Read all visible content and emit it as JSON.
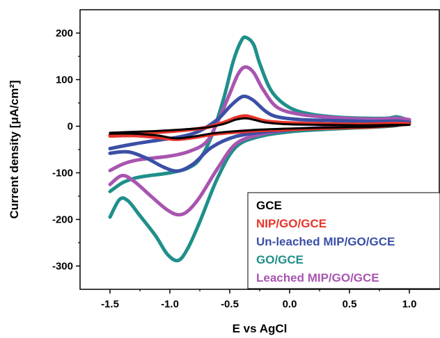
{
  "chart_data": {
    "type": "line",
    "title": "",
    "xlabel": "E vs AgCl",
    "ylabel": "Current density [μA/cm²]",
    "xlim": [
      -1.75,
      1.25
    ],
    "ylim": [
      -350,
      250
    ],
    "xticks": [
      -1.5,
      -1.0,
      -0.5,
      0.0,
      0.5,
      1.0
    ],
    "xtick_labels": [
      "-1.5",
      "-1.0",
      "-0.5",
      "0.0",
      "0.5",
      "1.0"
    ],
    "yticks": [
      -300,
      -200,
      -100,
      0,
      100,
      200
    ],
    "ytick_labels": [
      "-300",
      "-200",
      "-100",
      "0",
      "100",
      "200"
    ],
    "grid": false,
    "legend_position": "bottom-right",
    "series": [
      {
        "name": "GCE",
        "color": "#000000",
        "forward": [
          [
            -1.5,
            -14
          ],
          [
            -1.3,
            -12
          ],
          [
            -1.1,
            -10
          ],
          [
            -0.9,
            -7
          ],
          [
            -0.7,
            -3
          ],
          [
            -0.55,
            5
          ],
          [
            -0.45,
            14
          ],
          [
            -0.37,
            17
          ],
          [
            -0.3,
            14
          ],
          [
            -0.2,
            8
          ],
          [
            0.0,
            4
          ],
          [
            0.3,
            3
          ],
          [
            0.6,
            2
          ],
          [
            0.9,
            3
          ],
          [
            1.0,
            3
          ]
        ],
        "reverse": [
          [
            1.0,
            3
          ],
          [
            0.7,
            -1
          ],
          [
            0.3,
            -3
          ],
          [
            0.0,
            -5
          ],
          [
            -0.3,
            -8
          ],
          [
            -0.6,
            -14
          ],
          [
            -0.8,
            -22
          ],
          [
            -0.95,
            -26
          ],
          [
            -1.1,
            -20
          ],
          [
            -1.3,
            -16
          ],
          [
            -1.5,
            -16
          ]
        ]
      },
      {
        "name": "NIP/GO/GCE",
        "color": "#e8342a",
        "forward": [
          [
            -1.5,
            -19
          ],
          [
            -1.3,
            -16
          ],
          [
            -1.1,
            -13
          ],
          [
            -0.9,
            -9
          ],
          [
            -0.7,
            -3
          ],
          [
            -0.55,
            8
          ],
          [
            -0.45,
            18
          ],
          [
            -0.37,
            22
          ],
          [
            -0.3,
            18
          ],
          [
            -0.2,
            11
          ],
          [
            0.0,
            7
          ],
          [
            0.3,
            5
          ],
          [
            0.6,
            4
          ],
          [
            0.9,
            6
          ],
          [
            1.0,
            5
          ]
        ],
        "reverse": [
          [
            1.0,
            5
          ],
          [
            0.7,
            -1
          ],
          [
            0.3,
            -4
          ],
          [
            0.0,
            -7
          ],
          [
            -0.3,
            -10
          ],
          [
            -0.6,
            -16
          ],
          [
            -0.8,
            -24
          ],
          [
            -0.95,
            -28
          ],
          [
            -1.1,
            -24
          ],
          [
            -1.3,
            -20
          ],
          [
            -1.5,
            -21
          ]
        ]
      },
      {
        "name": "Un-leached MIP/GO/GCE",
        "color": "#3a4fa6",
        "forward": [
          [
            -1.5,
            -48
          ],
          [
            -1.3,
            -38
          ],
          [
            -1.1,
            -30
          ],
          [
            -0.9,
            -22
          ],
          [
            -0.75,
            -10
          ],
          [
            -0.6,
            15
          ],
          [
            -0.5,
            42
          ],
          [
            -0.42,
            60
          ],
          [
            -0.37,
            64
          ],
          [
            -0.3,
            55
          ],
          [
            -0.2,
            32
          ],
          [
            -0.1,
            20
          ],
          [
            0.1,
            14
          ],
          [
            0.4,
            12
          ],
          [
            0.7,
            10
          ],
          [
            0.9,
            11
          ],
          [
            1.0,
            8
          ]
        ],
        "reverse": [
          [
            1.0,
            8
          ],
          [
            0.7,
            3
          ],
          [
            0.4,
            -2
          ],
          [
            0.1,
            -6
          ],
          [
            -0.2,
            -12
          ],
          [
            -0.45,
            -22
          ],
          [
            -0.65,
            -45
          ],
          [
            -0.8,
            -80
          ],
          [
            -0.93,
            -96
          ],
          [
            -1.05,
            -88
          ],
          [
            -1.2,
            -68
          ],
          [
            -1.35,
            -55
          ],
          [
            -1.5,
            -58
          ]
        ]
      },
      {
        "name": "GO/GCE",
        "color": "#1f8f8a",
        "forward": [
          [
            -1.5,
            -140
          ],
          [
            -1.4,
            -122
          ],
          [
            -1.3,
            -112
          ],
          [
            -1.2,
            -107
          ],
          [
            -1.0,
            -100
          ],
          [
            -0.85,
            -90
          ],
          [
            -0.75,
            -70
          ],
          [
            -0.65,
            -20
          ],
          [
            -0.55,
            60
          ],
          [
            -0.47,
            140
          ],
          [
            -0.4,
            185
          ],
          [
            -0.36,
            190
          ],
          [
            -0.3,
            175
          ],
          [
            -0.25,
            135
          ],
          [
            -0.15,
            75
          ],
          [
            0.0,
            40
          ],
          [
            0.2,
            25
          ],
          [
            0.5,
            18
          ],
          [
            0.8,
            17
          ],
          [
            0.9,
            20
          ],
          [
            1.0,
            12
          ]
        ],
        "reverse": [
          [
            1.0,
            12
          ],
          [
            0.9,
            2
          ],
          [
            0.7,
            -2
          ],
          [
            0.5,
            -4
          ],
          [
            0.2,
            -8
          ],
          [
            0.0,
            -12
          ],
          [
            -0.25,
            -22
          ],
          [
            -0.45,
            -45
          ],
          [
            -0.6,
            -110
          ],
          [
            -0.75,
            -205
          ],
          [
            -0.85,
            -262
          ],
          [
            -0.93,
            -288
          ],
          [
            -1.02,
            -275
          ],
          [
            -1.12,
            -235
          ],
          [
            -1.25,
            -192
          ],
          [
            -1.35,
            -160
          ],
          [
            -1.42,
            -157
          ],
          [
            -1.5,
            -195
          ]
        ]
      },
      {
        "name": "Leached MIP/GO/GCE",
        "color": "#a855b0",
        "forward": [
          [
            -1.5,
            -95
          ],
          [
            -1.4,
            -82
          ],
          [
            -1.3,
            -74
          ],
          [
            -1.2,
            -70
          ],
          [
            -1.0,
            -64
          ],
          [
            -0.85,
            -55
          ],
          [
            -0.7,
            -35
          ],
          [
            -0.6,
            10
          ],
          [
            -0.5,
            70
          ],
          [
            -0.43,
            112
          ],
          [
            -0.37,
            127
          ],
          [
            -0.3,
            115
          ],
          [
            -0.22,
            78
          ],
          [
            -0.1,
            40
          ],
          [
            0.1,
            25
          ],
          [
            0.4,
            18
          ],
          [
            0.7,
            15
          ],
          [
            0.9,
            17
          ],
          [
            1.0,
            14
          ]
        ],
        "reverse": [
          [
            1.0,
            14
          ],
          [
            0.8,
            5
          ],
          [
            0.5,
            0
          ],
          [
            0.2,
            -4
          ],
          [
            0.0,
            -8
          ],
          [
            -0.25,
            -18
          ],
          [
            -0.45,
            -38
          ],
          [
            -0.6,
            -90
          ],
          [
            -0.75,
            -152
          ],
          [
            -0.85,
            -182
          ],
          [
            -0.93,
            -190
          ],
          [
            -1.02,
            -180
          ],
          [
            -1.15,
            -152
          ],
          [
            -1.3,
            -118
          ],
          [
            -1.4,
            -106
          ],
          [
            -1.5,
            -125
          ]
        ]
      }
    ]
  }
}
